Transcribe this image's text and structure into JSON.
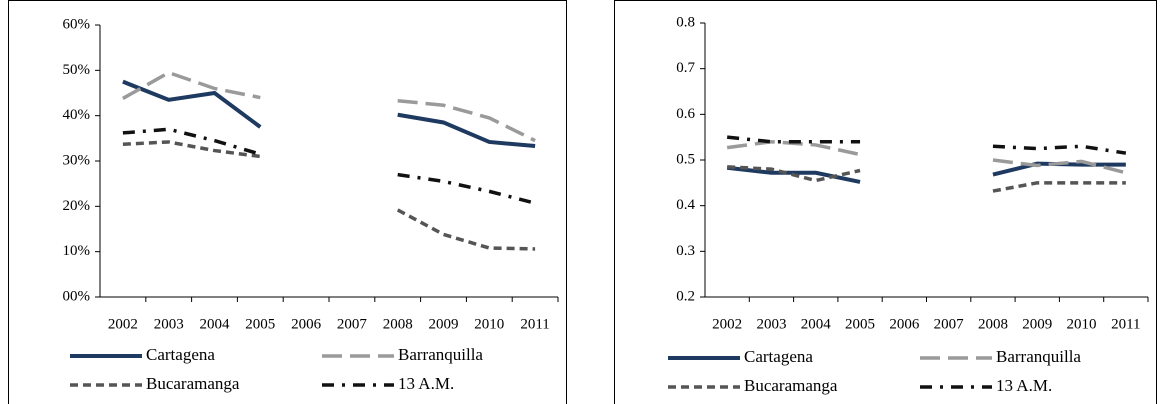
{
  "chart_data": [
    {
      "type": "line",
      "categories": [
        "2002",
        "2003",
        "2004",
        "2005",
        "2006",
        "2007",
        "2008",
        "2009",
        "2010",
        "2011"
      ],
      "ylim": [
        0,
        60
      ],
      "yticks": [
        {
          "value": 0,
          "label": "00%"
        },
        {
          "value": 10,
          "label": "10%"
        },
        {
          "value": 20,
          "label": "20%"
        },
        {
          "value": 30,
          "label": "30%"
        },
        {
          "value": 40,
          "label": "40%"
        },
        {
          "value": 50,
          "label": "50%"
        },
        {
          "value": 60,
          "label": "60%"
        }
      ],
      "series": [
        {
          "name": "Cartagena",
          "color": "#1f3a60",
          "dash": "solid",
          "values": [
            47.5,
            43.5,
            45,
            37.5,
            null,
            null,
            40.2,
            38.5,
            34.2,
            33.3
          ]
        },
        {
          "name": "Barranquilla",
          "color": "#9a9a9a",
          "dash": "long-dash",
          "values": [
            43.8,
            49.5,
            46,
            44,
            null,
            null,
            43.3,
            42.3,
            39.5,
            34.5
          ]
        },
        {
          "name": "Bucaramanga",
          "color": "#555555",
          "dash": "dash",
          "values": [
            33.7,
            34.2,
            32.3,
            31,
            null,
            null,
            19.2,
            13.8,
            10.8,
            10.6
          ]
        },
        {
          "name": "13 A.M.",
          "color": "#111111",
          "dash": "dash-dot",
          "values": [
            36.2,
            37,
            34.5,
            31.5,
            null,
            null,
            27,
            25.5,
            23.3,
            20.7
          ]
        }
      ]
    },
    {
      "type": "line",
      "categories": [
        "2002",
        "2003",
        "2004",
        "2005",
        "2006",
        "2007",
        "2008",
        "2009",
        "2010",
        "2011"
      ],
      "ylim": [
        0.2,
        0.8
      ],
      "yticks": [
        0.2,
        0.3,
        0.4,
        0.5,
        0.6,
        0.7,
        0.8
      ],
      "series": [
        {
          "name": "Cartagena",
          "color": "#1f3a60",
          "dash": "solid",
          "values": [
            0.483,
            0.472,
            0.472,
            0.452,
            null,
            null,
            0.468,
            0.492,
            0.49,
            0.49
          ]
        },
        {
          "name": "Barranquilla",
          "color": "#9a9a9a",
          "dash": "long-dash",
          "values": [
            0.527,
            0.54,
            0.533,
            0.512,
            null,
            null,
            0.5,
            0.488,
            0.497,
            0.472
          ]
        },
        {
          "name": "Bucaramanga",
          "color": "#555555",
          "dash": "dash",
          "values": [
            0.485,
            0.48,
            0.455,
            0.477,
            null,
            null,
            0.432,
            0.45,
            0.45,
            0.45
          ]
        },
        {
          "name": "13 A.M.",
          "color": "#111111",
          "dash": "dash-dot",
          "values": [
            0.55,
            0.54,
            0.54,
            0.54,
            null,
            null,
            0.53,
            0.525,
            0.53,
            0.515
          ]
        }
      ]
    }
  ]
}
